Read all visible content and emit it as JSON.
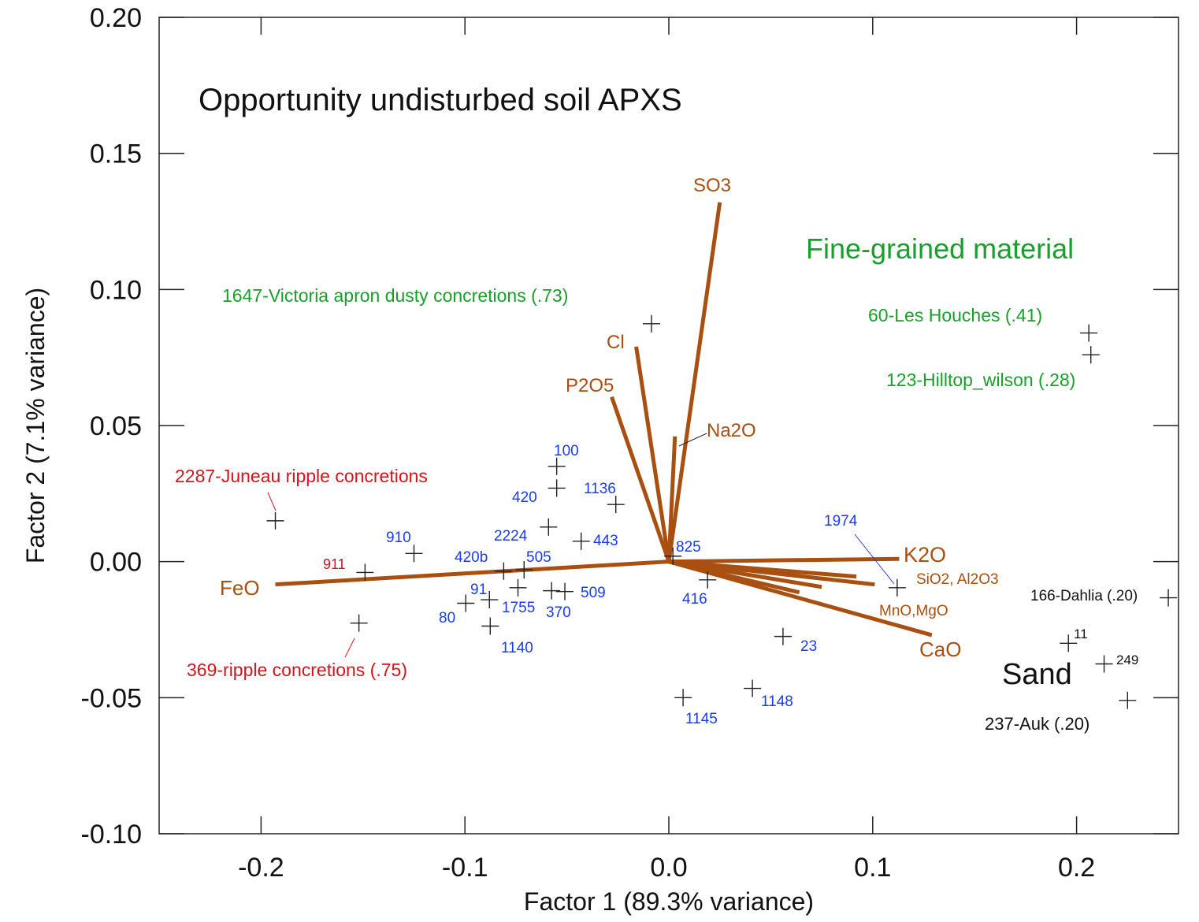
{
  "chart_data": {
    "type": "scatter",
    "title": "Opportunity undisturbed soil APXS",
    "xlabel": "Factor 1 (89.3% variance)",
    "ylabel": "Factor 2 (7.1% variance)",
    "xlim": [
      -0.25,
      0.25
    ],
    "ylim": [
      -0.1,
      0.2
    ],
    "x_ticks": [
      "-0.2",
      "-0.1",
      "0.0",
      "0.1",
      "0.2"
    ],
    "x_tick_values": [
      -0.2,
      -0.1,
      0.0,
      0.1,
      0.2
    ],
    "y_ticks": [
      "0.20",
      "0.15",
      "0.10",
      "0.05",
      "0.00",
      "-0.05",
      "-0.10"
    ],
    "y_tick_values": [
      0.2,
      0.15,
      0.1,
      0.05,
      0.0,
      -0.05,
      -0.1
    ],
    "grid": false,
    "colors": {
      "vector": "#a94f10",
      "sample": "#1a3cf0",
      "fine": "#18a02a",
      "concretion": "#d0161c",
      "sand": "#111111",
      "marker": "#222222"
    },
    "vectors": [
      {
        "label": "SO3",
        "x": 0.025,
        "y": 0.132
      },
      {
        "label": "Cl",
        "x": -0.016,
        "y": 0.079
      },
      {
        "label": "P2O5",
        "x": -0.028,
        "y": 0.0605
      },
      {
        "label": "Na2O",
        "x": 0.003,
        "y": 0.046
      },
      {
        "label": "K2O",
        "x": 0.113,
        "y": 0.001
      },
      {
        "label": "",
        "x": 0.092,
        "y": -0.0055
      },
      {
        "label": "",
        "x": 0.101,
        "y": -0.0084
      },
      {
        "label": "",
        "x": 0.075,
        "y": -0.0093
      },
      {
        "label": "",
        "x": 0.064,
        "y": -0.0113
      },
      {
        "label": "CaO",
        "x": 0.129,
        "y": -0.027
      },
      {
        "label": "FeO",
        "x": -0.193,
        "y": -0.0084
      }
    ],
    "vector_group_labels": [
      "SiO2, Al2O3",
      "MnO,MgO"
    ],
    "points": [
      {
        "label": "1647-Victoria apron dusty concretions (.73)",
        "x": -0.0085,
        "y": 0.0874,
        "group": "fine"
      },
      {
        "label": "60-Les Houches (.41)",
        "x": 0.206,
        "y": 0.084,
        "group": "fine"
      },
      {
        "label": "123-Hilltop_wilson (.28)",
        "x": 0.207,
        "y": 0.076,
        "group": "fine"
      },
      {
        "label": "2287-Juneau ripple concretions",
        "x": -0.193,
        "y": 0.015,
        "group": "concretion"
      },
      {
        "label": "911",
        "x": -0.149,
        "y": -0.004,
        "group": "concretion"
      },
      {
        "label": "369-ripple concretions (.75)",
        "x": -0.152,
        "y": -0.0226,
        "group": "concretion"
      },
      {
        "label": "910",
        "x": -0.125,
        "y": 0.003,
        "group": "sample"
      },
      {
        "label": "100",
        "x": -0.055,
        "y": 0.035,
        "group": "sample"
      },
      {
        "label": "420",
        "x": -0.055,
        "y": 0.027,
        "group": "sample"
      },
      {
        "label": "1136",
        "x": -0.026,
        "y": 0.021,
        "group": "sample"
      },
      {
        "label": "2224",
        "x": -0.059,
        "y": 0.0127,
        "group": "sample"
      },
      {
        "label": "443",
        "x": -0.043,
        "y": 0.0075,
        "group": "sample"
      },
      {
        "label": "420b",
        "x": -0.081,
        "y": -0.0035,
        "group": "sample"
      },
      {
        "label": "505",
        "x": -0.071,
        "y": -0.003,
        "group": "sample"
      },
      {
        "label": "1755",
        "x": -0.074,
        "y": -0.0096,
        "group": "sample"
      },
      {
        "label": "370",
        "x": -0.0575,
        "y": -0.0107,
        "group": "sample"
      },
      {
        "label": "509",
        "x": -0.051,
        "y": -0.011,
        "group": "sample"
      },
      {
        "label": "91",
        "x": -0.088,
        "y": -0.014,
        "group": "sample"
      },
      {
        "label": "80",
        "x": -0.0996,
        "y": -0.0153,
        "group": "sample"
      },
      {
        "label": "1140",
        "x": -0.0876,
        "y": -0.0237,
        "group": "sample"
      },
      {
        "label": "825",
        "x": 0.002,
        "y": 0.002,
        "group": "sample"
      },
      {
        "label": "416",
        "x": 0.019,
        "y": -0.0067,
        "group": "sample"
      },
      {
        "label": "1974",
        "x": 0.112,
        "y": -0.0096,
        "group": "sample"
      },
      {
        "label": "23",
        "x": 0.056,
        "y": -0.0275,
        "group": "sample"
      },
      {
        "label": "1148",
        "x": 0.041,
        "y": -0.0466,
        "group": "sample"
      },
      {
        "label": "1145",
        "x": 0.007,
        "y": -0.05,
        "group": "sample"
      },
      {
        "label": "166-Dahlia (.20)",
        "x": 0.245,
        "y": -0.0133,
        "group": "sand"
      },
      {
        "label": "11",
        "x": 0.196,
        "y": -0.03,
        "group": "sand"
      },
      {
        "label": "249",
        "x": 0.2135,
        "y": -0.0376,
        "group": "sand"
      },
      {
        "label": "237-Auk (.20)",
        "x": 0.225,
        "y": -0.051,
        "group": "sand"
      }
    ],
    "annotations": {
      "fine_group": "Fine-grained material",
      "sand_group": "Sand"
    }
  }
}
